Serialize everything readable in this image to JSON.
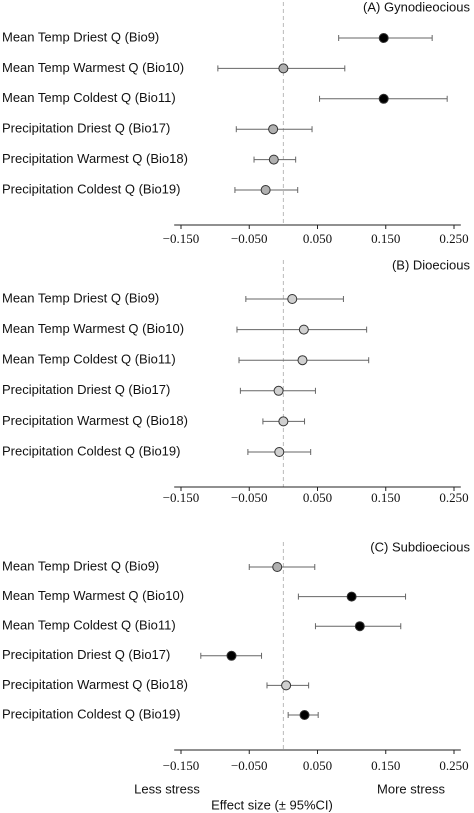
{
  "chart_data": [
    {
      "type": "forest",
      "title": "(A) Gynodieocious",
      "categories": [
        "Mean Temp Driest Q (Bio9)",
        "Mean Temp Warmest Q (Bio10)",
        "Mean Temp Coldest Q (Bio11)",
        "Precipitation Driest Q (Bio17)",
        "Precipitation Warmest Q (Bio18)",
        "Precipitation Coldest Q (Bio19)"
      ],
      "values": [
        0.147,
        0.0,
        0.147,
        -0.015,
        -0.014,
        -0.026
      ],
      "lower": [
        0.081,
        -0.096,
        0.053,
        -0.069,
        -0.043,
        -0.071
      ],
      "upper": [
        0.218,
        0.09,
        0.24,
        0.042,
        0.018,
        0.021
      ],
      "colors": [
        "#000000",
        "#b0b0b0",
        "#000000",
        "#b0b0b0",
        "#b0b0b0",
        "#b0b0b0"
      ],
      "reference_line": 0,
      "xlim": [
        -0.16,
        0.26
      ],
      "xticks": [
        {
          "value": -0.15,
          "label": "−0.150"
        },
        {
          "value": -0.05,
          "label": "−0.050"
        },
        {
          "value": 0.05,
          "label": "0.050"
        },
        {
          "value": 0.15,
          "label": "0.150"
        },
        {
          "value": 0.25,
          "label": "0.250"
        }
      ]
    },
    {
      "type": "forest",
      "title": "(B) Dioecious",
      "categories": [
        "Mean Temp Driest Q (Bio9)",
        "Mean Temp Warmest Q (Bio10)",
        "Mean Temp Coldest Q (Bio11)",
        "Precipitation Driest Q (Bio17)",
        "Precipitation Warmest Q (Bio18)",
        "Precipitation Coldest Q (Bio19)"
      ],
      "values": [
        0.013,
        0.03,
        0.028,
        -0.007,
        0.0,
        -0.006
      ],
      "lower": [
        -0.055,
        -0.068,
        -0.065,
        -0.063,
        -0.03,
        -0.052
      ],
      "upper": [
        0.088,
        0.122,
        0.125,
        0.047,
        0.031,
        0.04
      ],
      "colors": [
        "#d0d0d0",
        "#d0d0d0",
        "#d0d0d0",
        "#d0d0d0",
        "#d0d0d0",
        "#d0d0d0"
      ],
      "reference_line": 0,
      "xlim": [
        -0.16,
        0.26
      ],
      "xticks": [
        {
          "value": -0.15,
          "label": "−0.150"
        },
        {
          "value": -0.05,
          "label": "−0.050"
        },
        {
          "value": 0.05,
          "label": "0.050"
        },
        {
          "value": 0.15,
          "label": "0.150"
        },
        {
          "value": 0.25,
          "label": "0.250"
        }
      ]
    },
    {
      "type": "forest",
      "title": "(C) Subdioecious",
      "categories": [
        "Mean Temp Driest Q (Bio9)",
        "Mean Temp Warmest Q (Bio10)",
        "Mean Temp Coldest Q (Bio11)",
        "Precipitation Driest Q (Bio17)",
        "Precipitation Warmest Q (Bio18)",
        "Precipitation Coldest Q (Bio19)"
      ],
      "values": [
        -0.009,
        0.1,
        0.112,
        -0.076,
        0.004,
        0.031
      ],
      "lower": [
        -0.05,
        0.022,
        0.047,
        -0.121,
        -0.024,
        0.007
      ],
      "upper": [
        0.046,
        0.179,
        0.172,
        -0.032,
        0.037,
        0.051
      ],
      "colors": [
        "#b0b0b0",
        "#000000",
        "#000000",
        "#000000",
        "#d0d0d0",
        "#000000"
      ],
      "reference_line": 0,
      "xlim": [
        -0.16,
        0.26
      ],
      "xticks": [
        {
          "value": -0.15,
          "label": "−0.150"
        },
        {
          "value": -0.05,
          "label": "−0.050"
        },
        {
          "value": 0.05,
          "label": "0.050"
        },
        {
          "value": 0.15,
          "label": "0.150"
        },
        {
          "value": 0.25,
          "label": "0.250"
        }
      ]
    }
  ],
  "annotations": {
    "left": "Less stress",
    "right": "More stress",
    "xlabel": "Effect size (± 95%CI)"
  }
}
